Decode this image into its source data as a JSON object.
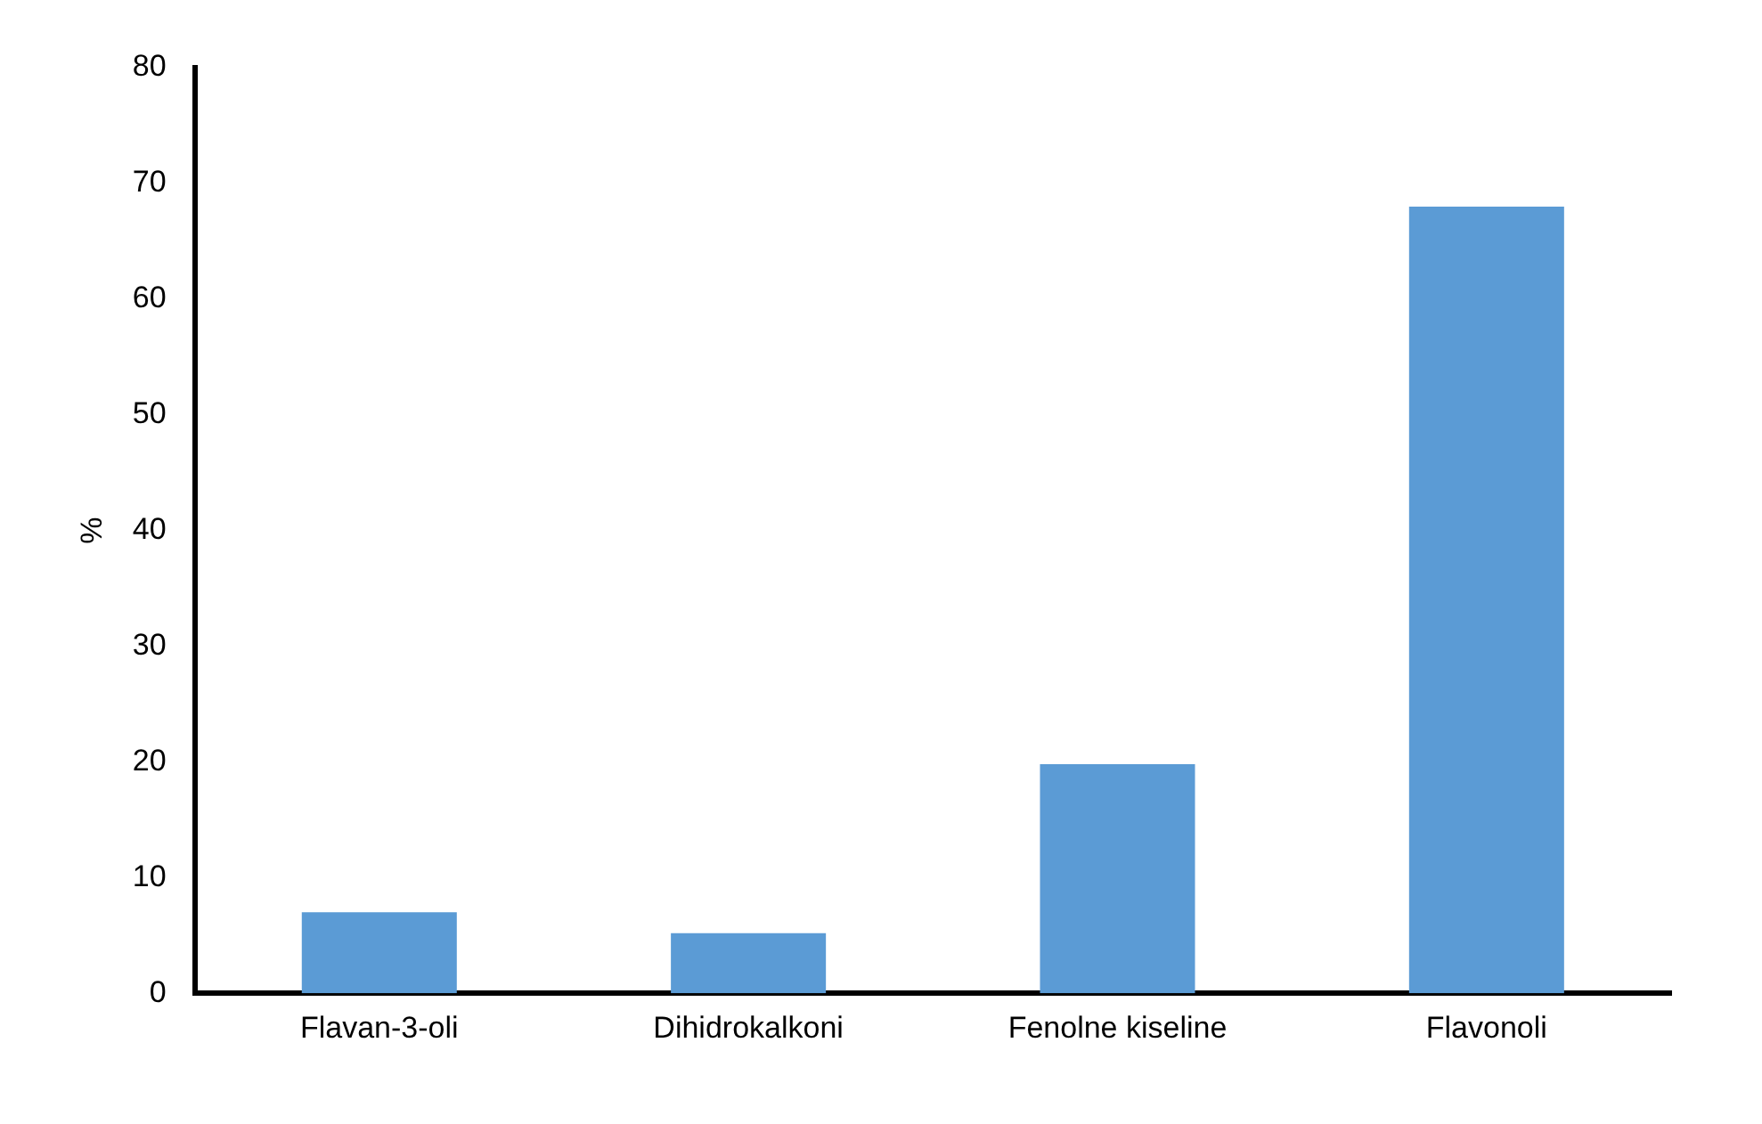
{
  "chart_data": {
    "type": "bar",
    "ylabel": "%",
    "categories": [
      "Flavan-3-oli",
      "Dihidrokalkoni",
      "Fenolne kiseline",
      "Flavonoli"
    ],
    "values": [
      7.0,
      5.2,
      19.8,
      68.0
    ],
    "color": "#5b9bd5",
    "ylim": [
      0,
      80
    ],
    "yticks": [
      0,
      10,
      20,
      30,
      40,
      50,
      60,
      70,
      80
    ],
    "grid": false,
    "legend": false
  }
}
